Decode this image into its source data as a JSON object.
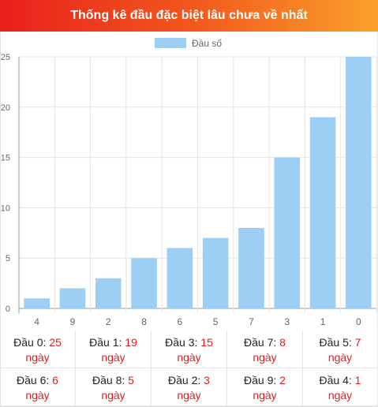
{
  "header": {
    "title": "Thống kê đầu đặc biệt lâu chưa về nhất"
  },
  "colors": {
    "header_start": "#e8201c",
    "header_end": "#f9a12a",
    "bar": "#9dcff5",
    "value_text": "#e11d1d"
  },
  "chart_data": {
    "type": "bar",
    "categories": [
      "4",
      "9",
      "2",
      "8",
      "6",
      "5",
      "7",
      "3",
      "1",
      "0"
    ],
    "series": [
      {
        "name": "Đầu số",
        "values": [
          1,
          2,
          3,
          5,
          6,
          7,
          8,
          15,
          19,
          25
        ]
      }
    ],
    "yticks": [
      "0",
      "5",
      "10",
      "15",
      "20",
      "25"
    ],
    "ylim": [
      0,
      25
    ],
    "grid": true,
    "legend": "top-center"
  },
  "stats": [
    {
      "label": "Đầu 0:",
      "value": "25",
      "unit": "ngày"
    },
    {
      "label": "Đầu 1:",
      "value": "19",
      "unit": "ngày"
    },
    {
      "label": "Đầu 3:",
      "value": "15",
      "unit": "ngày"
    },
    {
      "label": "Đầu 7:",
      "value": "8",
      "unit": "ngày"
    },
    {
      "label": "Đầu 5:",
      "value": "7",
      "unit": "ngày"
    },
    {
      "label": "Đầu 6:",
      "value": "6",
      "unit": "ngày"
    },
    {
      "label": "Đầu 8:",
      "value": "5",
      "unit": "ngày"
    },
    {
      "label": "Đầu 2:",
      "value": "3",
      "unit": "ngày"
    },
    {
      "label": "Đầu 9:",
      "value": "2",
      "unit": "ngày"
    },
    {
      "label": "Đầu 4:",
      "value": "1",
      "unit": "ngày"
    }
  ]
}
